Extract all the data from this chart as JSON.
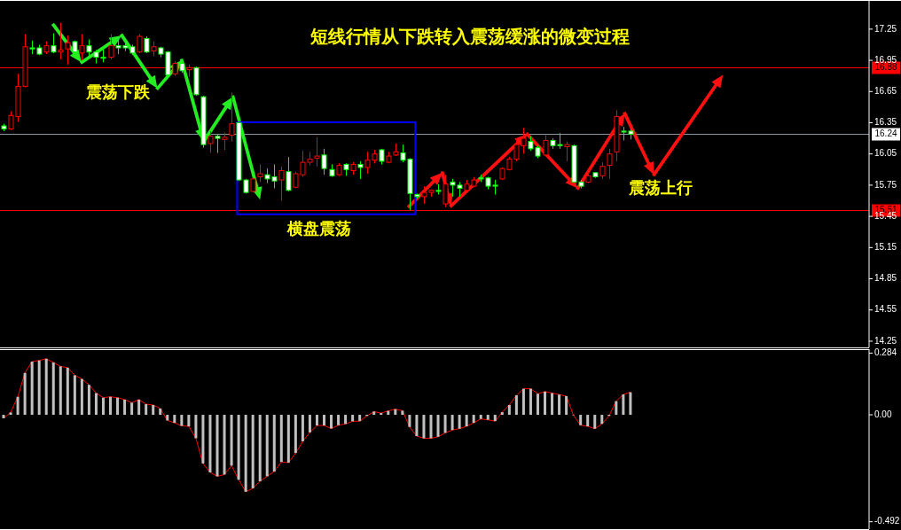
{
  "chart_data": [
    {
      "type": "candlestick",
      "title": "短线行情从下跌转入震荡缓涨的微变过程",
      "annotations": [
        "震荡下跌",
        "横盘震荡",
        "震荡上行"
      ],
      "categories": [
        null,
        null,
        null,
        null,
        null,
        null,
        null,
        null,
        null,
        null,
        null,
        null,
        null,
        null,
        null,
        null,
        null,
        null,
        null,
        null,
        null,
        null,
        null,
        null,
        null,
        null,
        null,
        null,
        null,
        null,
        null,
        null,
        null,
        null,
        null,
        null,
        null,
        null,
        null,
        null,
        null,
        null,
        null,
        null,
        null,
        null,
        null,
        null,
        null,
        null,
        null,
        null,
        null,
        null,
        null,
        null,
        null,
        null,
        null,
        null,
        null,
        null,
        null,
        null,
        null,
        null,
        null,
        null,
        null,
        null,
        null,
        null,
        null,
        null,
        null,
        null,
        null,
        null,
        null,
        null,
        null,
        null,
        null,
        null,
        null,
        null,
        null,
        null,
        null,
        null,
        null,
        null,
        null,
        null,
        null,
        null,
        null,
        null,
        null,
        null,
        null,
        null,
        null,
        null,
        null,
        null,
        null,
        null,
        null,
        null,
        null,
        null,
        null,
        null,
        null,
        null,
        null,
        null,
        null,
        null,
        null,
        null
      ],
      "ohlc": [
        [
          16.32,
          16.34,
          16.27,
          16.29
        ],
        [
          16.29,
          16.46,
          16.28,
          16.42
        ],
        [
          16.41,
          16.82,
          16.36,
          16.7
        ],
        [
          16.7,
          17.2,
          16.69,
          17.08
        ],
        [
          17.07,
          17.14,
          17.01,
          17.06
        ],
        [
          17.07,
          17.1,
          17.0,
          17.01
        ],
        [
          17.03,
          17.13,
          17.01,
          17.09
        ],
        [
          17.09,
          17.21,
          17.02,
          17.03
        ],
        [
          17.03,
          17.31,
          16.96,
          17.05
        ],
        [
          17.06,
          17.19,
          16.91,
          17.12
        ],
        [
          17.13,
          17.14,
          17.02,
          17.03
        ],
        [
          17.02,
          17.2,
          16.95,
          17.09
        ],
        [
          17.09,
          17.15,
          16.99,
          17.03
        ],
        [
          17.03,
          17.05,
          16.92,
          16.98
        ],
        [
          16.98,
          17.08,
          16.93,
          16.97
        ],
        [
          16.98,
          17.2,
          16.96,
          17.09
        ],
        [
          17.09,
          17.15,
          17.01,
          17.07
        ],
        [
          17.09,
          17.12,
          17.04,
          17.07
        ],
        [
          17.08,
          17.1,
          17.0,
          17.02
        ],
        [
          17.03,
          17.2,
          17.02,
          17.18
        ],
        [
          17.16,
          17.18,
          17.02,
          17.03
        ],
        [
          17.04,
          17.13,
          16.99,
          17.08
        ],
        [
          17.07,
          17.08,
          16.98,
          17.01
        ],
        [
          17.03,
          17.04,
          16.79,
          16.81
        ],
        [
          16.82,
          16.94,
          16.8,
          16.92
        ],
        [
          16.92,
          16.95,
          16.83,
          16.85
        ],
        [
          16.86,
          16.91,
          16.79,
          16.88
        ],
        [
          16.88,
          16.89,
          16.61,
          16.62
        ],
        [
          16.6,
          16.61,
          16.11,
          16.14
        ],
        [
          16.15,
          16.27,
          16.06,
          16.22
        ],
        [
          16.22,
          16.24,
          16.06,
          16.2
        ],
        [
          16.19,
          16.25,
          16.09,
          16.21
        ],
        [
          16.23,
          16.64,
          16.17,
          16.34
        ],
        [
          16.35,
          16.36,
          15.79,
          15.8
        ],
        [
          15.8,
          15.81,
          15.67,
          15.68
        ],
        [
          15.69,
          15.82,
          15.68,
          15.81
        ],
        [
          15.83,
          15.95,
          15.78,
          15.86
        ],
        [
          15.85,
          15.91,
          15.77,
          15.81
        ],
        [
          15.83,
          15.95,
          15.72,
          15.79
        ],
        [
          15.8,
          15.93,
          15.6,
          15.89
        ],
        [
          15.88,
          16.02,
          15.69,
          15.7
        ],
        [
          15.73,
          15.88,
          15.72,
          15.86
        ],
        [
          15.85,
          16.08,
          15.83,
          15.97
        ],
        [
          15.97,
          16.07,
          15.94,
          16.0
        ],
        [
          16.01,
          16.21,
          15.93,
          16.03
        ],
        [
          16.04,
          16.1,
          15.85,
          15.91
        ],
        [
          15.9,
          15.95,
          15.83,
          15.84
        ],
        [
          15.85,
          15.96,
          15.84,
          15.94
        ],
        [
          15.95,
          15.96,
          15.84,
          15.9
        ],
        [
          15.89,
          15.97,
          15.85,
          15.95
        ],
        [
          15.95,
          15.98,
          15.81,
          15.92
        ],
        [
          15.92,
          16.07,
          15.86,
          15.99
        ],
        [
          15.99,
          16.09,
          15.96,
          16.05
        ],
        [
          16.09,
          16.1,
          15.95,
          15.98
        ],
        [
          15.97,
          16.07,
          15.96,
          16.03
        ],
        [
          16.04,
          16.15,
          16.03,
          16.07
        ],
        [
          16.06,
          16.14,
          15.97,
          15.99
        ],
        [
          16.0,
          16.01,
          15.51,
          15.67
        ],
        [
          15.66,
          15.67,
          15.62,
          15.64
        ],
        [
          15.64,
          15.74,
          15.57,
          15.68
        ],
        [
          15.68,
          15.71,
          15.64,
          15.7
        ],
        [
          15.7,
          15.76,
          15.66,
          15.69
        ],
        [
          15.57,
          15.85,
          15.54,
          15.76
        ],
        [
          15.78,
          15.81,
          15.64,
          15.75
        ],
        [
          15.75,
          15.78,
          15.64,
          15.72
        ],
        [
          15.7,
          15.8,
          15.69,
          15.76
        ],
        [
          15.74,
          15.83,
          15.73,
          15.8
        ],
        [
          15.82,
          15.85,
          15.78,
          15.81
        ],
        [
          15.82,
          15.83,
          15.71,
          15.74
        ],
        [
          15.75,
          15.8,
          15.66,
          15.74
        ],
        [
          15.81,
          15.92,
          15.8,
          15.91
        ],
        [
          15.9,
          16.02,
          15.89,
          16.0
        ],
        [
          16.0,
          16.2,
          15.98,
          16.14
        ],
        [
          16.13,
          16.3,
          16.05,
          16.2
        ],
        [
          16.17,
          16.22,
          16.08,
          16.1
        ],
        [
          16.11,
          16.13,
          16.01,
          16.03
        ],
        [
          16.04,
          16.23,
          16.03,
          16.18
        ],
        [
          16.18,
          16.2,
          16.1,
          16.13
        ],
        [
          16.14,
          16.25,
          16.1,
          16.13
        ],
        [
          16.12,
          16.17,
          15.98,
          16.14
        ],
        [
          16.13,
          16.14,
          15.77,
          15.78
        ],
        [
          15.78,
          15.8,
          15.72,
          15.74
        ],
        [
          15.78,
          15.88,
          15.77,
          15.84
        ],
        [
          15.87,
          15.87,
          15.82,
          15.83
        ],
        [
          15.84,
          15.97,
          15.81,
          15.93
        ],
        [
          15.94,
          16.1,
          15.81,
          16.05
        ],
        [
          16.07,
          16.47,
          15.98,
          16.41
        ],
        [
          16.27,
          16.31,
          16.18,
          16.26
        ],
        [
          16.27,
          16.29,
          16.19,
          16.24
        ],
        null,
        null,
        null,
        null,
        null,
        null,
        null,
        null,
        null,
        null,
        null,
        null,
        null,
        null,
        null,
        null,
        null,
        null,
        null,
        null,
        null,
        null,
        null,
        null,
        null,
        null,
        null,
        null,
        null,
        null,
        null,
        null,
        null
      ],
      "ylim": [
        14.19,
        17.53
      ],
      "yticks": [
        14.25,
        14.55,
        14.85,
        15.15,
        15.45,
        15.75,
        16.05,
        16.35,
        16.65,
        16.95,
        17.25
      ],
      "ref_lines": [
        {
          "axis": "y",
          "value": 16.88,
          "label": "16.88",
          "color": "#ff0000"
        },
        {
          "axis": "y",
          "value": 16.24,
          "label": "16.24",
          "color": "#8c96a0"
        },
        {
          "axis": "y",
          "value": 15.51,
          "label": "15.51",
          "color": "#ff0000"
        }
      ]
    },
    {
      "type": "bar",
      "categories": [
        null,
        null,
        null,
        null,
        null,
        null,
        null,
        null,
        null,
        null,
        null,
        null,
        null,
        null,
        null,
        null,
        null,
        null,
        null,
        null,
        null,
        null,
        null,
        null,
        null,
        null,
        null,
        null,
        null,
        null,
        null,
        null,
        null,
        null,
        null,
        null,
        null,
        null,
        null,
        null,
        null,
        null,
        null,
        null,
        null,
        null,
        null,
        null,
        null,
        null,
        null,
        null,
        null,
        null,
        null,
        null,
        null,
        null,
        null,
        null,
        null,
        null,
        null,
        null,
        null,
        null,
        null,
        null,
        null,
        null,
        null,
        null,
        null,
        null,
        null,
        null,
        null,
        null,
        null,
        null,
        null,
        null,
        null,
        null,
        null,
        null,
        null,
        null,
        null,
        null,
        null,
        null,
        null,
        null,
        null,
        null,
        null,
        null,
        null,
        null,
        null,
        null,
        null,
        null,
        null,
        null,
        null,
        null,
        null,
        null,
        null,
        null,
        null,
        null,
        null,
        null,
        null,
        null,
        null,
        null,
        null,
        null
      ],
      "series": [
        {
          "type": "bar",
          "color": "#c0c0c0",
          "values": [
            -0.016,
            0.011,
            0.083,
            0.193,
            0.245,
            0.25,
            0.258,
            0.241,
            0.223,
            0.217,
            0.182,
            0.165,
            0.138,
            0.1,
            0.079,
            0.083,
            0.079,
            0.07,
            0.056,
            0.07,
            0.049,
            0.045,
            0.029,
            -0.026,
            -0.037,
            -0.051,
            -0.053,
            -0.108,
            -0.224,
            -0.265,
            -0.283,
            -0.275,
            -0.234,
            -0.299,
            -0.354,
            -0.338,
            -0.306,
            -0.283,
            -0.261,
            -0.217,
            -0.22,
            -0.176,
            -0.122,
            -0.081,
            -0.049,
            -0.049,
            -0.063,
            -0.048,
            -0.042,
            -0.03,
            -0.029,
            -0.005,
            0.015,
            0.008,
            0.018,
            0.026,
            0.019,
            -0.056,
            -0.098,
            -0.108,
            -0.108,
            -0.101,
            -0.083,
            -0.07,
            -0.064,
            -0.053,
            -0.037,
            -0.019,
            -0.023,
            -0.029,
            0.012,
            0.045,
            0.09,
            0.12,
            0.12,
            0.097,
            0.107,
            0.1,
            0.093,
            0.086,
            -0.002,
            -0.048,
            -0.053,
            -0.064,
            -0.042,
            -0.005,
            0.063,
            0.094,
            0.104,
            null,
            null,
            null,
            null,
            null,
            null,
            null,
            null,
            null,
            null,
            null,
            null,
            null,
            null,
            null,
            null,
            null,
            null,
            null,
            null,
            null,
            null,
            null,
            null,
            null,
            null,
            null,
            null,
            null,
            null,
            null,
            null,
            null
          ]
        },
        {
          "type": "line",
          "color": "#ff0000",
          "values": [
            -0.016,
            0.011,
            0.083,
            0.193,
            0.245,
            0.25,
            0.258,
            0.241,
            0.223,
            0.217,
            0.182,
            0.165,
            0.138,
            0.1,
            0.079,
            0.083,
            0.079,
            0.07,
            0.056,
            0.07,
            0.049,
            0.045,
            0.029,
            -0.026,
            -0.037,
            -0.051,
            -0.053,
            -0.108,
            -0.224,
            -0.265,
            -0.283,
            -0.275,
            -0.234,
            -0.299,
            -0.354,
            -0.338,
            -0.306,
            -0.283,
            -0.261,
            -0.217,
            -0.22,
            -0.176,
            -0.122,
            -0.081,
            -0.049,
            -0.049,
            -0.063,
            -0.048,
            -0.042,
            -0.03,
            -0.029,
            -0.005,
            0.015,
            0.008,
            0.018,
            0.026,
            0.019,
            -0.056,
            -0.098,
            -0.108,
            -0.108,
            -0.101,
            -0.083,
            -0.07,
            -0.064,
            -0.053,
            -0.037,
            -0.019,
            -0.023,
            -0.029,
            0.012,
            0.045,
            0.09,
            0.12,
            0.12,
            0.097,
            0.107,
            0.1,
            0.093,
            0.086,
            -0.002,
            -0.048,
            -0.053,
            -0.064,
            -0.042,
            -0.005,
            0.063,
            0.094,
            0.104,
            null,
            null,
            null,
            null,
            null,
            null,
            null,
            null,
            null,
            null,
            null,
            null,
            null,
            null,
            null,
            null,
            null,
            null,
            null,
            null,
            null,
            null,
            null,
            null,
            null,
            null,
            null,
            null,
            null,
            null,
            null,
            null,
            null
          ]
        }
      ],
      "ylim": [
        -0.526,
        0.302
      ],
      "yticks": [
        0.284,
        {
          "value": 0,
          "label": "0.00"
        },
        -0.492
      ]
    }
  ]
}
